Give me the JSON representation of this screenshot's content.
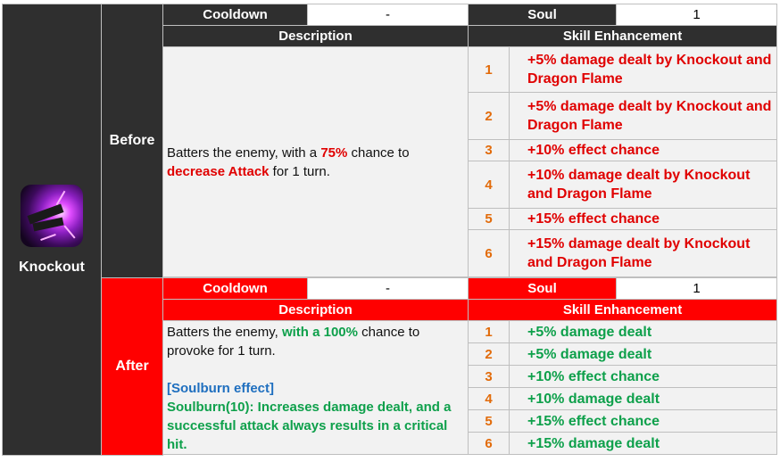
{
  "skill": {
    "name": "Knockout",
    "icon": "knockout-skill-icon"
  },
  "labels": {
    "cooldown": "Cooldown",
    "soul": "Soul",
    "description": "Description",
    "enhancement": "Skill Enhancement"
  },
  "before": {
    "label": "Before",
    "cooldown_value": "-",
    "soul_value": "1",
    "description": {
      "p1": "Batters the enemy, with a ",
      "chance": "75%",
      "p2": " chance to ",
      "effect": "decrease Attack",
      "p3": " for 1 turn."
    },
    "enhancements": [
      {
        "level": "1",
        "text": "+5% damage dealt by Knockout and Dragon Flame"
      },
      {
        "level": "2",
        "text": "+5% damage dealt by Knockout and Dragon Flame"
      },
      {
        "level": "3",
        "text": "+10% effect chance"
      },
      {
        "level": "4",
        "text": "+10% damage dealt by Knockout and Dragon Flame"
      },
      {
        "level": "5",
        "text": "+15% effect chance"
      },
      {
        "level": "6",
        "text": "+15% damage dealt by Knockout and Dragon Flame"
      }
    ]
  },
  "after": {
    "label": "After",
    "cooldown_value": "-",
    "soul_value": "1",
    "description": {
      "p1": "Batters the enemy, ",
      "chance": "with a 100%",
      "p2": " chance to provoke for 1 turn.",
      "soulburn_title": "[Soulburn effect]",
      "soulburn_text": "Soulburn(10): Increases damage dealt, and a successful attack always results in a critical hit."
    },
    "enhancements": [
      {
        "level": "1",
        "text": "+5% damage dealt"
      },
      {
        "level": "2",
        "text": "+5% damage dealt"
      },
      {
        "level": "3",
        "text": "+10% effect chance"
      },
      {
        "level": "4",
        "text": "+10% damage dealt"
      },
      {
        "level": "5",
        "text": "+15% effect chance"
      },
      {
        "level": "6",
        "text": "+15% damage dealt"
      }
    ]
  },
  "colors": {
    "dark_header": "#2f2f2f",
    "after_header": "#ff0000",
    "before_enhancement_text": "#e00000",
    "after_enhancement_text": "#0ea04b",
    "level_number": "#e26b0a",
    "soulburn_title": "#1f6fbf"
  }
}
